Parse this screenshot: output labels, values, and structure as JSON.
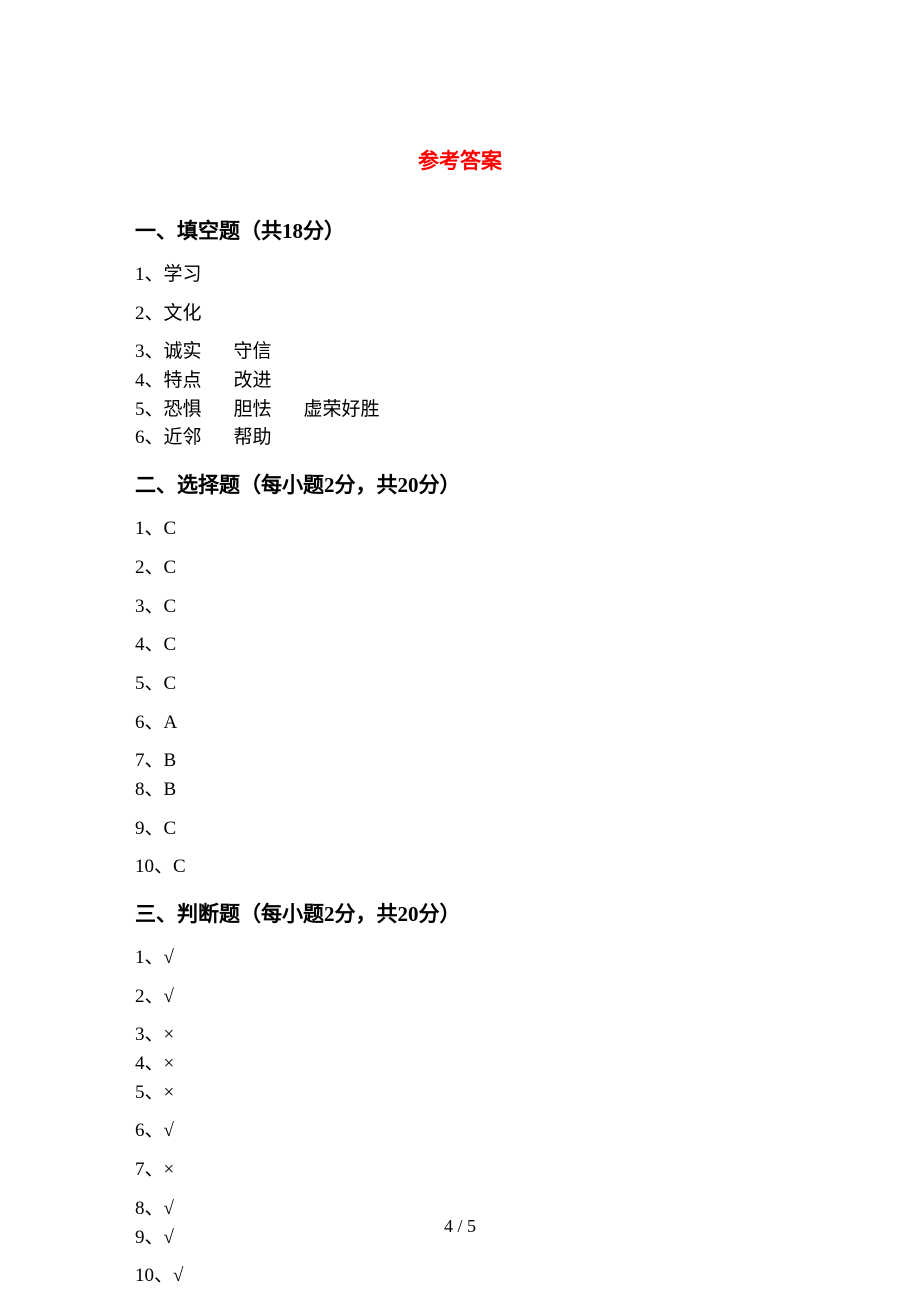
{
  "title": "参考答案",
  "sections": [
    {
      "header": "一、填空题（共18分）",
      "items": [
        {
          "num": "1",
          "parts": [
            "学习"
          ],
          "compact": false
        },
        {
          "num": "2",
          "parts": [
            "文化"
          ],
          "compact": false
        },
        {
          "num": "3",
          "parts": [
            "诚实",
            "守信"
          ],
          "compact": true
        },
        {
          "num": "4",
          "parts": [
            "特点",
            "改进"
          ],
          "compact": true
        },
        {
          "num": "5",
          "parts": [
            "恐惧",
            "胆怯",
            "虚荣好胜"
          ],
          "compact": true
        },
        {
          "num": "6",
          "parts": [
            "近邻",
            "帮助"
          ],
          "compact": false
        }
      ]
    },
    {
      "header": "二、选择题（每小题2分，共20分）",
      "items": [
        {
          "num": "1",
          "parts": [
            "C"
          ],
          "compact": false
        },
        {
          "num": "2",
          "parts": [
            "C"
          ],
          "compact": false
        },
        {
          "num": "3",
          "parts": [
            "C"
          ],
          "compact": false
        },
        {
          "num": "4",
          "parts": [
            "C"
          ],
          "compact": false
        },
        {
          "num": "5",
          "parts": [
            "C"
          ],
          "compact": false
        },
        {
          "num": "6",
          "parts": [
            "A"
          ],
          "compact": false
        },
        {
          "num": "7",
          "parts": [
            "B"
          ],
          "compact": true
        },
        {
          "num": "8",
          "parts": [
            "B"
          ],
          "compact": false
        },
        {
          "num": "9",
          "parts": [
            "C"
          ],
          "compact": false
        },
        {
          "num": "10",
          "parts": [
            "C"
          ],
          "compact": false
        }
      ]
    },
    {
      "header": "三、判断题（每小题2分，共20分）",
      "items": [
        {
          "num": "1",
          "parts": [
            "√"
          ],
          "compact": false
        },
        {
          "num": "2",
          "parts": [
            "√"
          ],
          "compact": false
        },
        {
          "num": "3",
          "parts": [
            "×"
          ],
          "compact": true
        },
        {
          "num": "4",
          "parts": [
            "×"
          ],
          "compact": true
        },
        {
          "num": "5",
          "parts": [
            "×"
          ],
          "compact": false
        },
        {
          "num": "6",
          "parts": [
            "√"
          ],
          "compact": false
        },
        {
          "num": "7",
          "parts": [
            "×"
          ],
          "compact": false
        },
        {
          "num": "8",
          "parts": [
            "√"
          ],
          "compact": true
        },
        {
          "num": "9",
          "parts": [
            "√"
          ],
          "compact": false
        },
        {
          "num": "10",
          "parts": [
            "√"
          ],
          "compact": false
        }
      ]
    }
  ],
  "pageNumber": "4 / 5",
  "colors": {
    "title": "#ff0000",
    "text": "#000000",
    "background": "#ffffff"
  },
  "typography": {
    "titleFontSize": 21,
    "sectionHeaderFontSize": 21,
    "bodyFontSize": 19,
    "pageNumberFontSize": 18,
    "fontFamily": "SimSun"
  }
}
